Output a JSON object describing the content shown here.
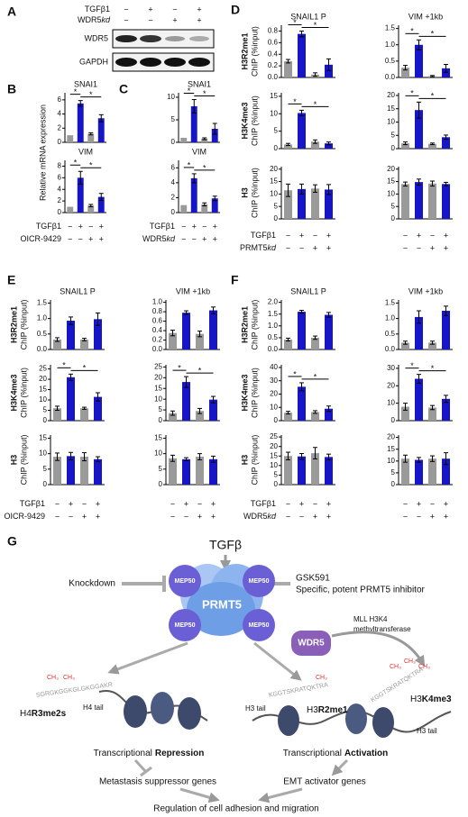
{
  "bar_colors": [
    "#9a9a9a",
    "#1616c8",
    "#9a9a9a",
    "#1616c8"
  ],
  "blot": {
    "label": "A",
    "conditions": [
      {
        "name": [
          "TGFβ1"
        ],
        "signs": [
          "−",
          "+",
          "−",
          "+"
        ]
      },
      {
        "name": [
          "WDR5",
          "kd"
        ],
        "signs": [
          "−",
          "−",
          "+",
          "+"
        ]
      }
    ],
    "bands": [
      "WDR5",
      "GAPDH"
    ]
  },
  "panels": [
    {
      "label": "B",
      "ylabel": "Relative mRNA expression",
      "rows": [
        {
          "charts": [
            {
              "type": "bar",
              "title": "SNAI1",
              "values": [
                1,
                5.5,
                1.2,
                3.4
              ],
              "errors": [
                0,
                0.4,
                0.15,
                0.5
              ],
              "ylim": [
                0,
                7
              ],
              "yticks": [
                0,
                2,
                4,
                6
              ],
              "significance": [
                "*",
                "*"
              ]
            }
          ]
        },
        {
          "charts": [
            {
              "type": "bar",
              "title": "VIM",
              "values": [
                1,
                6,
                1.2,
                2.7
              ],
              "errors": [
                0,
                1.1,
                0.2,
                0.6
              ],
              "ylim": [
                0,
                9
              ],
              "yticks": [
                0,
                2,
                4,
                6,
                8
              ],
              "significance": [
                "*",
                "*"
              ]
            }
          ]
        }
      ],
      "conditions": [
        {
          "name": [
            "TGFβ1"
          ],
          "signs": [
            "−",
            "+",
            "−",
            "+"
          ]
        },
        {
          "name": [
            "OICR-9429"
          ],
          "signs": [
            "−",
            "−",
            "+",
            "+"
          ]
        }
      ]
    },
    {
      "label": "C",
      "rows": [
        {
          "charts": [
            {
              "type": "bar",
              "title": "SNAI1",
              "values": [
                1,
                8,
                0.8,
                3
              ],
              "errors": [
                0,
                1.5,
                0.2,
                1.2
              ],
              "ylim": [
                0,
                11
              ],
              "yticks": [
                0,
                5,
                10
              ],
              "significance": [
                "*",
                "*"
              ]
            }
          ]
        },
        {
          "charts": [
            {
              "type": "bar",
              "title": "VIM",
              "values": [
                1,
                4.6,
                1.1,
                1.9
              ],
              "errors": [
                0,
                0.6,
                0.2,
                0.3
              ],
              "ylim": [
                0,
                7
              ],
              "yticks": [
                0,
                2,
                4,
                6
              ],
              "significance": [
                "*",
                "*"
              ]
            }
          ]
        }
      ],
      "conditions": [
        {
          "name": [
            "TGFβ1"
          ],
          "signs": [
            "−",
            "+",
            "−",
            "+"
          ]
        },
        {
          "name": [
            "WDR5",
            "kd"
          ],
          "signs": [
            "−",
            "−",
            "+",
            "+"
          ]
        }
      ]
    },
    {
      "label": "D",
      "columns": [
        "SNAIL1 P",
        "VIM +1kb"
      ],
      "rows": [
        {
          "ylabel": [
            "H3R2me1",
            "ChIP (%input)"
          ],
          "charts": [
            {
              "type": "bar",
              "values": [
                0.28,
                0.75,
                0.05,
                0.22
              ],
              "errors": [
                0.03,
                0.05,
                0.03,
                0.1
              ],
              "ylim": [
                0,
                0.9
              ],
              "yticks": [
                {
                  "value": 0,
                  "label": "0.0"
                },
                0.2,
                0.4,
                0.6,
                0.8
              ],
              "significance": [
                "*",
                "*"
              ]
            },
            {
              "type": "bar",
              "values": [
                0.3,
                1.0,
                0.04,
                0.28
              ],
              "errors": [
                0.07,
                0.15,
                0.02,
                0.12
              ],
              "ylim": [
                0,
                1.6
              ],
              "yticks": [
                {
                  "value": 0,
                  "label": "0.0"
                },
                0.5,
                {
                  "value": 1,
                  "label": "1.0"
                },
                1.5
              ],
              "significance": [
                "*",
                "*"
              ]
            }
          ]
        },
        {
          "ylabel": [
            "H3K4me3",
            "ChIP (%input)"
          ],
          "charts": [
            {
              "type": "bar",
              "values": [
                1.2,
                10.2,
                2,
                1.5
              ],
              "errors": [
                0.3,
                0.8,
                0.5,
                0.4
              ],
              "ylim": [
                0,
                16
              ],
              "yticks": [
                0,
                5,
                10,
                15
              ],
              "significance": [
                "*",
                "*"
              ]
            },
            {
              "type": "bar",
              "values": [
                2,
                14.5,
                1.8,
                4.3
              ],
              "errors": [
                0.5,
                3,
                0.3,
                0.8
              ],
              "ylim": [
                0,
                21
              ],
              "yticks": [
                0,
                5,
                10,
                15,
                20
              ],
              "significance": [
                "*",
                "*"
              ]
            }
          ]
        },
        {
          "ylabel": [
            "H3",
            "ChIP (%input)"
          ],
          "charts": [
            {
              "type": "bar",
              "values": [
                11.5,
                12,
                12.2,
                11.8
              ],
              "errors": [
                2.5,
                2,
                1.5,
                2
              ],
              "ylim": [
                0,
                21
              ],
              "yticks": [
                0,
                5,
                10,
                15,
                20
              ]
            },
            {
              "type": "bar",
              "values": [
                14,
                14.8,
                14.2,
                14
              ],
              "errors": [
                0.8,
                1.2,
                1,
                0.7
              ],
              "ylim": [
                0,
                21
              ],
              "yticks": [
                0,
                5,
                10,
                15,
                20
              ]
            }
          ]
        }
      ],
      "conditions": [
        {
          "name": [
            "TGFβ1"
          ],
          "signs": [
            "−",
            "+",
            "−",
            "+"
          ]
        },
        {
          "name": [
            "PRMT5",
            "kd"
          ],
          "signs": [
            "−",
            "−",
            "+",
            "+"
          ]
        }
      ]
    },
    {
      "label": "E",
      "columns": [
        "SNAIL1 P",
        "VIM +1kb"
      ],
      "rows": [
        {
          "ylabel": [
            "H3R2me1",
            "ChIP (%input)"
          ],
          "charts": [
            {
              "type": "bar",
              "values": [
                0.32,
                0.93,
                0.32,
                0.98
              ],
              "errors": [
                0.06,
                0.12,
                0.04,
                0.2
              ],
              "ylim": [
                0,
                1.6
              ],
              "yticks": [
                {
                  "value": 0,
                  "label": "0.0"
                },
                0.5,
                {
                  "value": 1,
                  "label": "1.0"
                },
                1.5
              ]
            },
            {
              "type": "bar",
              "values": [
                0.35,
                0.78,
                0.33,
                0.83
              ],
              "errors": [
                0.06,
                0.04,
                0.06,
                0.07
              ],
              "ylim": [
                0,
                1.05
              ],
              "yticks": [
                {
                  "value": 0,
                  "label": "0.0"
                },
                0.2,
                0.4,
                0.6,
                0.8,
                {
                  "value": 1,
                  "label": "1.0"
                }
              ]
            }
          ]
        },
        {
          "ylabel": [
            "H3K4me3",
            "ChIP (%input)"
          ],
          "charts": [
            {
              "type": "bar",
              "values": [
                6,
                21,
                6,
                11.5
              ],
              "errors": [
                1,
                1.5,
                0.5,
                2
              ],
              "ylim": [
                0,
                27
              ],
              "yticks": [
                0,
                5,
                10,
                15,
                20,
                25
              ],
              "significance": [
                "*",
                "*"
              ]
            },
            {
              "type": "bar",
              "values": [
                3.5,
                18,
                4.5,
                9.8
              ],
              "errors": [
                1,
                2.5,
                1.2,
                1.5
              ],
              "ylim": [
                0,
                26
              ],
              "yticks": [
                0,
                5,
                10,
                15,
                20,
                25
              ],
              "significance": [
                "*",
                "*"
              ]
            }
          ]
        },
        {
          "ylabel": [
            "H3",
            "ChIP (%input)"
          ],
          "charts": [
            {
              "type": "bar",
              "values": [
                9,
                9.2,
                9,
                8.2
              ],
              "errors": [
                1.2,
                1.2,
                1.3,
                0.8
              ],
              "ylim": [
                0,
                16
              ],
              "yticks": [
                0,
                5,
                10,
                15
              ]
            },
            {
              "type": "bar",
              "values": [
                8.5,
                8.2,
                9,
                8.2
              ],
              "errors": [
                1,
                0.5,
                1,
                1
              ],
              "ylim": [
                0,
                16
              ],
              "yticks": [
                0,
                5,
                10,
                15
              ]
            }
          ]
        }
      ],
      "conditions": [
        {
          "name": [
            "TGFβ1"
          ],
          "signs": [
            "−",
            "+",
            "−",
            "+"
          ]
        },
        {
          "name": [
            "OICR-9429"
          ],
          "signs": [
            "−",
            "−",
            "+",
            "+"
          ]
        }
      ]
    },
    {
      "label": "F",
      "columns": [
        "SNAIL1 P",
        "VIM +1kb"
      ],
      "rows": [
        {
          "ylabel": [
            "H3R2me1",
            "ChIP (%input)"
          ],
          "charts": [
            {
              "type": "bar",
              "values": [
                0.42,
                1.6,
                0.5,
                1.47
              ],
              "errors": [
                0.06,
                0.06,
                0.07,
                0.1
              ],
              "ylim": [
                0,
                2.1
              ],
              "yticks": [
                {
                  "value": 0,
                  "label": "0.0"
                },
                0.5,
                {
                  "value": 1,
                  "label": "1.0"
                },
                1.5,
                {
                  "value": 2,
                  "label": "2.0"
                }
              ]
            },
            {
              "type": "bar",
              "values": [
                0.22,
                1.05,
                0.22,
                1.25
              ],
              "errors": [
                0.05,
                0.2,
                0.05,
                0.15
              ],
              "ylim": [
                0,
                1.6
              ],
              "yticks": [
                {
                  "value": 0,
                  "label": "0.0"
                },
                0.5,
                {
                  "value": 1,
                  "label": "1.0"
                },
                1.5
              ]
            }
          ]
        },
        {
          "ylabel": [
            "H3K4me3",
            "ChIP (%input)"
          ],
          "charts": [
            {
              "type": "bar",
              "values": [
                6,
                25.5,
                6.5,
                9
              ],
              "errors": [
                1,
                3,
                1,
                2
              ],
              "ylim": [
                0,
                42
              ],
              "yticks": [
                0,
                10,
                20,
                30,
                40
              ],
              "significance": [
                "*",
                "*"
              ]
            },
            {
              "type": "bar",
              "values": [
                8,
                24,
                7.5,
                12.5
              ],
              "errors": [
                2,
                2.5,
                1.2,
                2
              ],
              "ylim": [
                0,
                32
              ],
              "yticks": [
                0,
                10,
                20,
                30
              ],
              "significance": [
                "*",
                "*"
              ]
            }
          ]
        },
        {
          "ylabel": [
            "H3",
            "ChIP (%input)"
          ],
          "charts": [
            {
              "type": "bar",
              "values": [
                15,
                14.8,
                16.5,
                14.5
              ],
              "errors": [
                2,
                1.5,
                3,
                1.5
              ],
              "ylim": [
                0,
                26
              ],
              "yticks": [
                0,
                5,
                10,
                15,
                20,
                25
              ]
            },
            {
              "type": "bar",
              "values": [
                11,
                10.5,
                11,
                11
              ],
              "errors": [
                1.5,
                1,
                1.2,
                2.5
              ],
              "ylim": [
                0,
                21
              ],
              "yticks": [
                0,
                5,
                10,
                15,
                20
              ]
            }
          ]
        }
      ],
      "conditions": [
        {
          "name": [
            "TGFβ1"
          ],
          "signs": [
            "−",
            "+",
            "−",
            "+"
          ]
        },
        {
          "name": [
            "WDR5",
            "kd"
          ],
          "signs": [
            "−",
            "−",
            "+",
            "+"
          ]
        }
      ]
    }
  ],
  "diagram": {
    "label": "G",
    "stimulus": "TGFβ",
    "knockdown": "Knockdown",
    "inhibitor": "GSK591",
    "inhibitor_note": "Specific, potent PRMT5 inhibitor",
    "mep50": "MEP50",
    "prmt5": "PRMT5",
    "wdr5": "WDR5",
    "mll": [
      "MLL H3K4",
      "methyltransferase"
    ],
    "methyl": "CH₃",
    "h4_sequence": "SGRGKGGKGLGKGGAKR",
    "h3_sequence": "KGGTSKRATQKTRA",
    "h4_mark": [
      "H4",
      "R3me2s"
    ],
    "h4_tail": "H4 tail",
    "h3r2_mark": [
      "H3",
      "R2me1"
    ],
    "h3_tail": "H3 tail",
    "h3k4_mark": [
      "H3",
      "K4me3"
    ],
    "repression": [
      "Transcriptional",
      "Repression"
    ],
    "activation": [
      "Transcriptional",
      "Activation"
    ],
    "suppressor": "Metastasis suppressor genes",
    "emt": "EMT activator genes",
    "outcome": "Regulation of cell adhesion and migration"
  }
}
